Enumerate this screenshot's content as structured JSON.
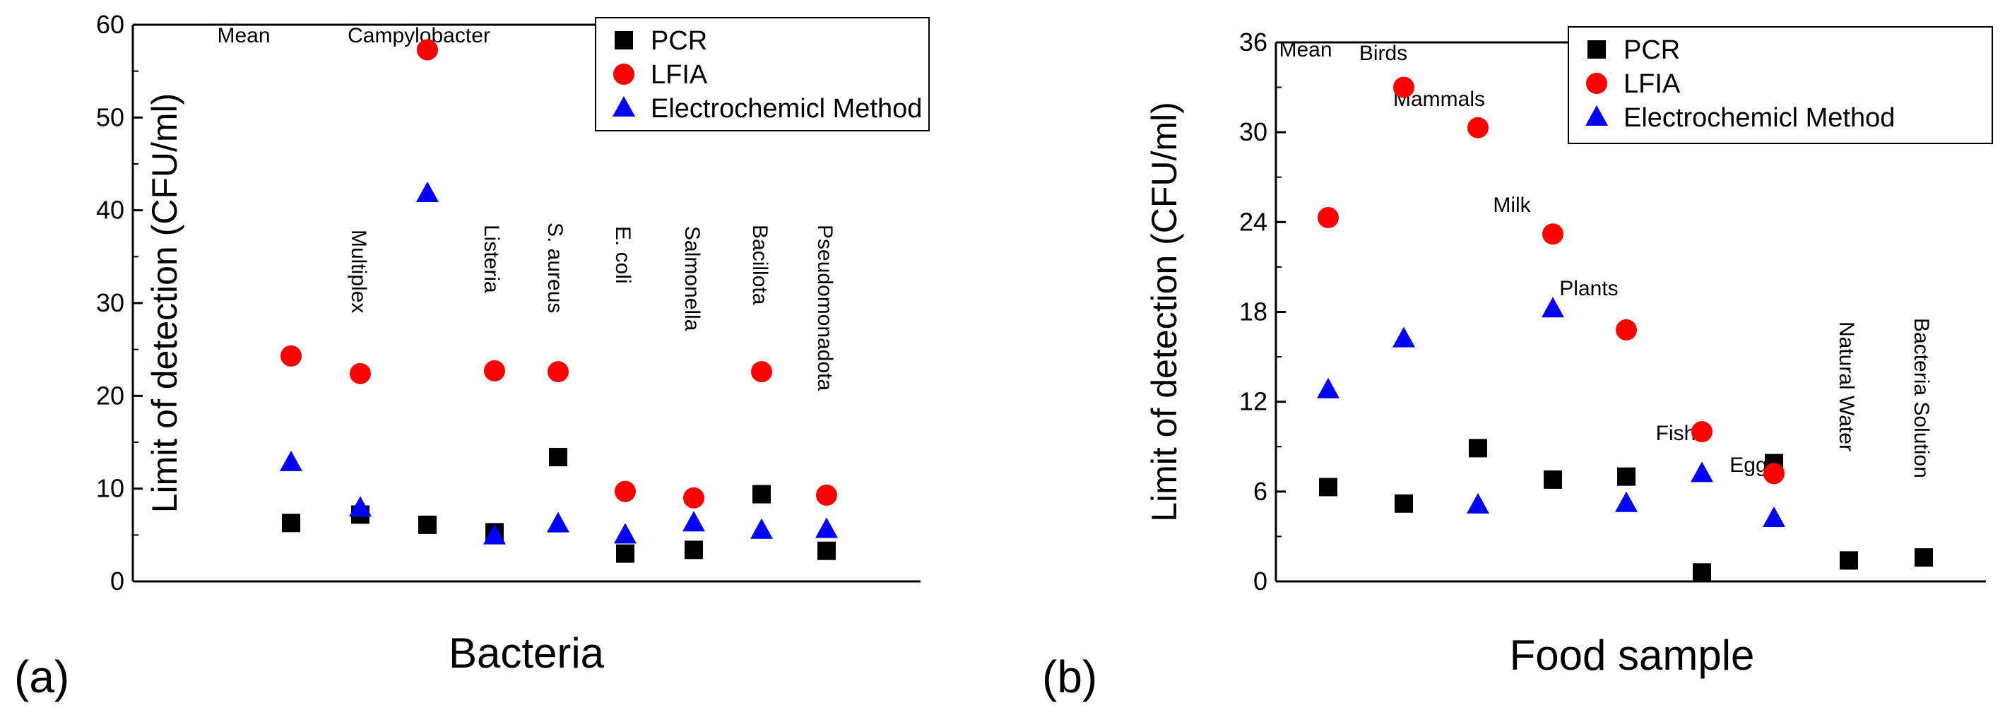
{
  "panels": [
    {
      "label": "(a)"
    },
    {
      "label": "(b)"
    }
  ],
  "chart_data": [
    {
      "type": "scatter",
      "title": "",
      "xlabel": "Bacteria",
      "ylabel": "Limit of detection (CFU/ml)",
      "ylim": [
        0,
        60
      ],
      "yticks": [
        "0",
        "10",
        "20",
        "30",
        "40",
        "50",
        "60"
      ],
      "grid": false,
      "legend_position": "top-right",
      "categories": [
        "Mean",
        "Multiplex",
        "Campylobacter",
        "Listeria",
        "S. aureus",
        "E. coli",
        "Salmonella",
        "Bacillota",
        "Pseudomonadota"
      ],
      "series": [
        {
          "name": "PCR",
          "marker": "square",
          "color": "#000000",
          "values": [
            6.3,
            7.2,
            6.1,
            5.3,
            13.4,
            3.0,
            3.4,
            9.4,
            3.3
          ]
        },
        {
          "name": "LFIA",
          "marker": "circle",
          "color": "#ff0000",
          "values": [
            24.3,
            22.4,
            57.3,
            22.7,
            22.6,
            9.7,
            9.0,
            22.6,
            9.3
          ]
        },
        {
          "name": "Electrochemicl Method",
          "marker": "triangle",
          "color": "#0000ff",
          "values": [
            12.8,
            7.9,
            41.8,
            4.9,
            6.2,
            5.0,
            6.3,
            5.5,
            5.6
          ]
        }
      ]
    },
    {
      "type": "scatter",
      "title": "",
      "xlabel": "Food sample",
      "ylabel": "Limit of detection (CFU/ml)",
      "ylim": [
        0,
        36
      ],
      "yticks": [
        "0",
        "6",
        "12",
        "18",
        "24",
        "30",
        "36"
      ],
      "grid": false,
      "legend_position": "top-right",
      "categories": [
        "Mean",
        "Birds",
        "Mammals",
        "Milk",
        "Plants",
        "Fish",
        "Egg",
        "Natural Water",
        "Bacteria Solution"
      ],
      "series": [
        {
          "name": "PCR",
          "marker": "square",
          "color": "#000000",
          "values": [
            6.3,
            5.2,
            8.9,
            6.8,
            7.0,
            0.6,
            7.9,
            1.4,
            1.6
          ]
        },
        {
          "name": "LFIA",
          "marker": "circle",
          "color": "#ff0000",
          "values": [
            24.3,
            33.0,
            30.3,
            23.2,
            16.8,
            10.0,
            7.2,
            null,
            null
          ]
        },
        {
          "name": "Electrochemicl Method",
          "marker": "triangle",
          "color": "#0000ff",
          "values": [
            12.8,
            16.2,
            5.1,
            18.2,
            5.2,
            7.2,
            4.2,
            null,
            null
          ]
        }
      ]
    }
  ]
}
